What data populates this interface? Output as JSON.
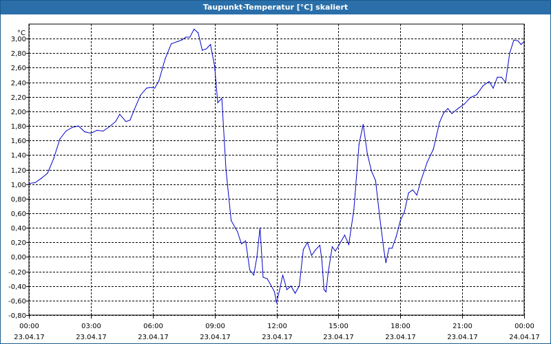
{
  "window": {
    "title": "Taupunkt-Temperatur [°C] skaliert"
  },
  "chart_data": {
    "type": "line",
    "title": "Taupunkt-Temperatur [°C] skaliert",
    "ylabel": "°C",
    "xlabel": "",
    "ylim": [
      -0.8,
      3.2
    ],
    "xlim": [
      0,
      24
    ],
    "grid": true,
    "line_color": "#0000c8",
    "y_ticks": [
      -0.8,
      -0.6,
      -0.4,
      -0.2,
      0.0,
      0.2,
      0.4,
      0.6,
      0.8,
      1.0,
      1.2,
      1.4,
      1.6,
      1.8,
      2.0,
      2.2,
      2.4,
      2.6,
      2.8,
      3.0
    ],
    "y_tick_labels": [
      "-0,80",
      "-0,60",
      "-0,40",
      "-0,20",
      "0,00",
      "0,20",
      "0,40",
      "0,60",
      "0,80",
      "1,00",
      "1,20",
      "1,40",
      "1,60",
      "1,80",
      "2,00",
      "2,20",
      "2,40",
      "2,60",
      "2,80",
      "3,00"
    ],
    "x_ticks": [
      0,
      3,
      6,
      9,
      12,
      15,
      18,
      21,
      24
    ],
    "x_tick_labels": [
      {
        "time": "00:00",
        "date": "23.04.17"
      },
      {
        "time": "03:00",
        "date": "23.04.17"
      },
      {
        "time": "06:00",
        "date": "23.04.17"
      },
      {
        "time": "09:00",
        "date": "23.04.17"
      },
      {
        "time": "12:00",
        "date": "23.04.17"
      },
      {
        "time": "15:00",
        "date": "23.04.17"
      },
      {
        "time": "18:00",
        "date": "23.04.17"
      },
      {
        "time": "21:00",
        "date": "23.04.17"
      },
      {
        "time": "00:00",
        "date": "24.04.17"
      }
    ],
    "series": [
      {
        "values": [
          [
            0.0,
            1.01
          ],
          [
            0.3,
            1.02
          ],
          [
            0.6,
            1.08
          ],
          [
            0.9,
            1.15
          ],
          [
            1.2,
            1.35
          ],
          [
            1.5,
            1.62
          ],
          [
            1.8,
            1.73
          ],
          [
            2.1,
            1.78
          ],
          [
            2.4,
            1.8
          ],
          [
            2.7,
            1.72
          ],
          [
            3.0,
            1.7
          ],
          [
            3.3,
            1.74
          ],
          [
            3.6,
            1.73
          ],
          [
            3.9,
            1.79
          ],
          [
            4.2,
            1.86
          ],
          [
            4.4,
            1.96
          ],
          [
            4.7,
            1.86
          ],
          [
            4.9,
            1.88
          ],
          [
            5.1,
            2.02
          ],
          [
            5.4,
            2.22
          ],
          [
            5.7,
            2.32
          ],
          [
            5.9,
            2.33
          ],
          [
            6.1,
            2.32
          ],
          [
            6.3,
            2.42
          ],
          [
            6.6,
            2.72
          ],
          [
            6.9,
            2.93
          ],
          [
            7.2,
            2.96
          ],
          [
            7.4,
            2.98
          ],
          [
            7.6,
            3.02
          ],
          [
            7.8,
            3.02
          ],
          [
            8.0,
            3.13
          ],
          [
            8.2,
            3.08
          ],
          [
            8.4,
            2.84
          ],
          [
            8.6,
            2.86
          ],
          [
            8.8,
            2.92
          ],
          [
            9.0,
            2.62
          ],
          [
            9.15,
            2.12
          ],
          [
            9.35,
            2.18
          ],
          [
            9.55,
            1.2
          ],
          [
            9.8,
            0.5
          ],
          [
            10.1,
            0.35
          ],
          [
            10.3,
            0.18
          ],
          [
            10.5,
            0.22
          ],
          [
            10.7,
            -0.18
          ],
          [
            10.9,
            -0.25
          ],
          [
            11.05,
            0.0
          ],
          [
            11.2,
            0.4
          ],
          [
            11.35,
            -0.28
          ],
          [
            11.55,
            -0.3
          ],
          [
            11.75,
            -0.4
          ],
          [
            11.9,
            -0.48
          ],
          [
            12.0,
            -0.63
          ],
          [
            12.15,
            -0.45
          ],
          [
            12.3,
            -0.25
          ],
          [
            12.5,
            -0.45
          ],
          [
            12.7,
            -0.4
          ],
          [
            12.9,
            -0.5
          ],
          [
            13.1,
            -0.4
          ],
          [
            13.3,
            0.1
          ],
          [
            13.5,
            0.2
          ],
          [
            13.7,
            0.02
          ],
          [
            13.9,
            0.1
          ],
          [
            14.1,
            0.16
          ],
          [
            14.2,
            -0.05
          ],
          [
            14.3,
            -0.45
          ],
          [
            14.4,
            -0.48
          ],
          [
            14.5,
            -0.22
          ],
          [
            14.7,
            0.14
          ],
          [
            14.85,
            0.08
          ],
          [
            15.0,
            0.15
          ],
          [
            15.3,
            0.3
          ],
          [
            15.5,
            0.17
          ],
          [
            15.75,
            0.65
          ],
          [
            16.0,
            1.55
          ],
          [
            16.2,
            1.82
          ],
          [
            16.4,
            1.42
          ],
          [
            16.6,
            1.18
          ],
          [
            16.8,
            1.05
          ],
          [
            17.0,
            0.55
          ],
          [
            17.2,
            0.1
          ],
          [
            17.3,
            -0.08
          ],
          [
            17.45,
            0.12
          ],
          [
            17.6,
            0.12
          ],
          [
            17.8,
            0.28
          ],
          [
            18.0,
            0.5
          ],
          [
            18.2,
            0.62
          ],
          [
            18.4,
            0.88
          ],
          [
            18.6,
            0.92
          ],
          [
            18.8,
            0.85
          ],
          [
            19.0,
            1.05
          ],
          [
            19.3,
            1.3
          ],
          [
            19.6,
            1.48
          ],
          [
            19.9,
            1.85
          ],
          [
            20.1,
            1.98
          ],
          [
            20.3,
            2.04
          ],
          [
            20.5,
            1.97
          ],
          [
            20.8,
            2.04
          ],
          [
            21.1,
            2.1
          ],
          [
            21.4,
            2.19
          ],
          [
            21.7,
            2.23
          ],
          [
            22.0,
            2.35
          ],
          [
            22.3,
            2.41
          ],
          [
            22.5,
            2.32
          ],
          [
            22.7,
            2.47
          ],
          [
            22.9,
            2.47
          ],
          [
            23.1,
            2.4
          ],
          [
            23.3,
            2.8
          ],
          [
            23.5,
            2.98
          ],
          [
            23.7,
            2.97
          ],
          [
            23.85,
            2.92
          ],
          [
            24.0,
            2.96
          ]
        ]
      }
    ]
  }
}
